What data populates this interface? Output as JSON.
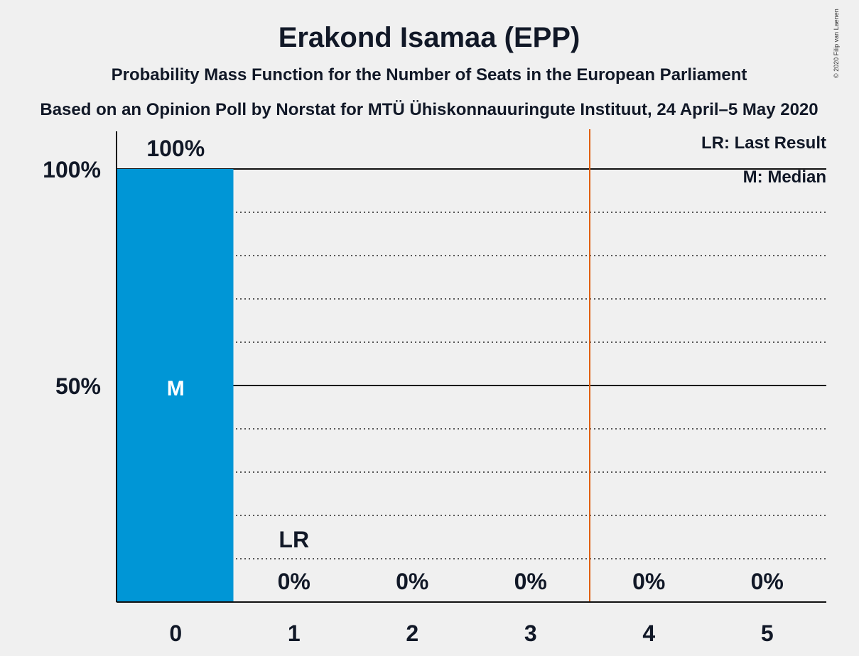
{
  "chart_data": {
    "type": "bar",
    "title": "Erakond Isamaa (EPP)",
    "subtitle": "Probability Mass Function for the Number of Seats in the European Parliament",
    "subtitle2": "Based on an Opinion Poll by Norstat for MTÜ Ühiskonnauuringute Instituut, 24 April–5 May 2020",
    "categories": [
      "0",
      "1",
      "2",
      "3",
      "4",
      "5"
    ],
    "values": [
      100,
      0,
      0,
      0,
      0,
      0
    ],
    "value_labels": [
      "100%",
      "0%",
      "0%",
      "0%",
      "0%",
      "0%"
    ],
    "ylim": [
      0,
      100
    ],
    "yticks": [
      {
        "value": 50,
        "label": "50%"
      },
      {
        "value": 100,
        "label": "100%"
      }
    ],
    "median_category": "0",
    "median_marker": "M",
    "last_result_category": "1",
    "last_result_marker": "LR",
    "majority_threshold": 3.5,
    "legend": [
      "LR: Last Result",
      "M: Median"
    ],
    "bar_color": "#0096d6",
    "threshold_color": "#e06010",
    "copyright": "© 2020 Filip van Laenen"
  }
}
